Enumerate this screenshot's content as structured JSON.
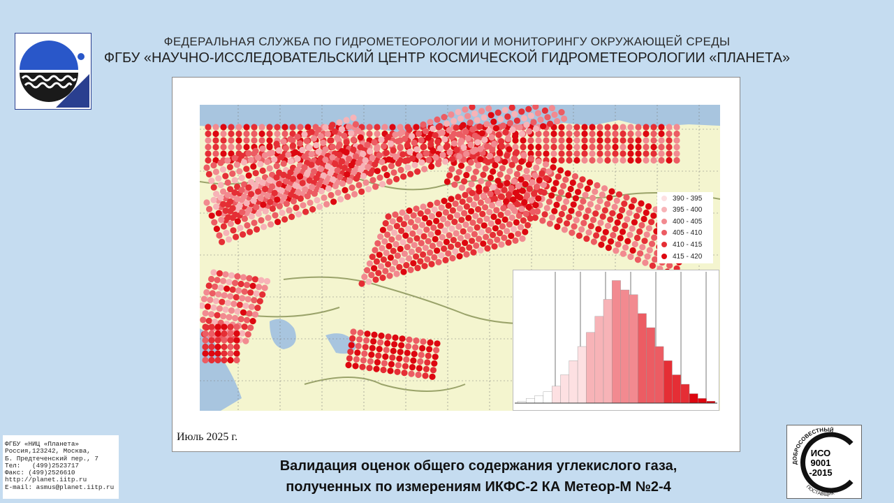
{
  "header": {
    "line1": "ФЕДЕРАЛЬНАЯ СЛУЖБА ПО ГИДРОМЕТЕОРОЛОГИИ И МОНИТОРИНГУ ОКРУЖАЮЩЕЙ СРЕДЫ",
    "line2": "ФГБУ «НАУЧНО-ИССЛЕДОВАТЕЛЬСКИЙ ЦЕНТР КОСМИЧЕСКОЙ ГИДРОМЕТЕОРОЛОГИИ «ПЛАНЕТА»"
  },
  "map": {
    "date_label": "Июль  2025 г.",
    "legend": [
      {
        "label": "390 - 395",
        "color": "#fde0e2"
      },
      {
        "label": "395 - 400",
        "color": "#f7b3b7"
      },
      {
        "label": "400 - 405",
        "color": "#f28a90"
      },
      {
        "label": "405 - 410",
        "color": "#ec5c63"
      },
      {
        "label": "410 - 415",
        "color": "#e52e35"
      },
      {
        "label": "415 - 420",
        "color": "#dd0710"
      }
    ]
  },
  "caption": {
    "line1": "Валидация оценок общего содержания углекислого газа,",
    "line2": "полученных по измерениям ИКФС-2 КА Метеор-М №2-4"
  },
  "contact": {
    "lines": [
      "ФГБУ «НИЦ «Планета»",
      "Россия,123242, Москва,",
      "Б. Предтеченский пер., 7",
      "Тел:   (499)2523717",
      "Факс: (499)2526610",
      "http://planet.iitp.ru",
      "E-mail: asmus@planet.iitp.ru"
    ]
  },
  "iso_badge": {
    "top_text": "ДОБРОСОВЕСТНЫЙ",
    "line1": "ИСО",
    "line2": "9001",
    "line3": "-2015",
    "bottom_text": "ПОСТАВЩИК"
  }
}
